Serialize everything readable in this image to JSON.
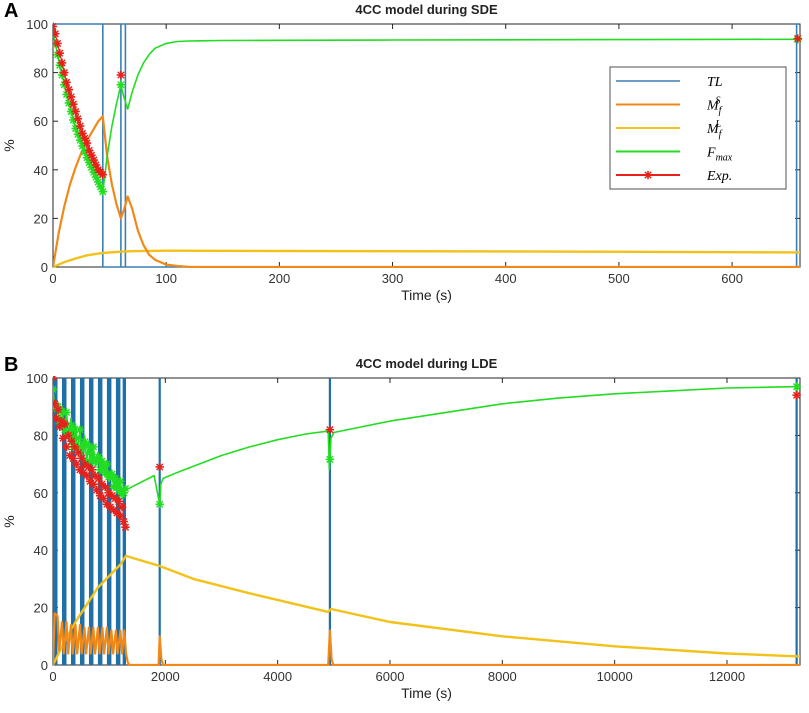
{
  "panel_a_label": "A",
  "panel_b_label": "B",
  "chart_data": [
    {
      "type": "line",
      "title": "4CC model during SDE",
      "xlabel": "Time (s)",
      "ylabel": "%",
      "xlim": [
        0,
        660
      ],
      "ylim": [
        0,
        100
      ],
      "xticks": [
        0,
        100,
        200,
        300,
        400,
        500,
        600
      ],
      "yticks": [
        0,
        20,
        40,
        60,
        80,
        100
      ],
      "grid": false,
      "legend_position": "right",
      "legend": [
        {
          "key": "TL",
          "label": "TL",
          "color": "#3a7fb5"
        },
        {
          "key": "Mfs",
          "label": "M",
          "sub": "f",
          "sup": "S",
          "color": "#f0891a"
        },
        {
          "key": "MfL",
          "label": "M",
          "sub": "f",
          "sup": "L",
          "color": "#f2c21a"
        },
        {
          "key": "Fmax",
          "label": "F",
          "sub": "max",
          "sup": "",
          "color": "#22dd22"
        },
        {
          "key": "Exp",
          "label": "Exp.",
          "color": "#e8201a"
        }
      ],
      "series": [
        {
          "name": "TL",
          "color": "#3a7fb5",
          "x": [
            0,
            44,
            44,
            60,
            60,
            62,
            62,
            64,
            64,
            65,
            65,
            657,
            657,
            659
          ],
          "y": [
            100,
            100,
            0,
            0,
            100,
            100,
            100,
            100,
            0,
            0,
            0,
            0,
            100,
            100
          ]
        },
        {
          "name": "Mfs",
          "color": "#f0891a",
          "x": [
            0,
            5,
            10,
            15,
            20,
            25,
            30,
            35,
            40,
            44,
            48,
            52,
            56,
            60,
            63,
            66,
            70,
            75,
            80,
            85,
            90,
            100,
            110,
            120,
            140,
            660
          ],
          "y": [
            0,
            14,
            25,
            34,
            41,
            47,
            52,
            56,
            60,
            62,
            45,
            34,
            26,
            20,
            24,
            29,
            24,
            15,
            9,
            5,
            3,
            1,
            0.4,
            0.1,
            0,
            0
          ]
        },
        {
          "name": "MfL",
          "color": "#f2c21a",
          "x": [
            0,
            10,
            20,
            30,
            44,
            60,
            70,
            100,
            200,
            400,
            660
          ],
          "y": [
            0,
            2,
            3.5,
            4.8,
            5.8,
            6.3,
            6.5,
            6.7,
            6.6,
            6.4,
            6
          ]
        },
        {
          "name": "Fmax",
          "color": "#22dd22",
          "x": [
            0,
            2,
            5,
            8,
            12,
            16,
            20,
            25,
            30,
            35,
            40,
            44,
            48,
            52,
            56,
            60,
            62,
            64,
            66,
            70,
            75,
            80,
            85,
            90,
            100,
            110,
            120,
            130,
            150,
            200,
            300,
            400,
            500,
            660
          ],
          "y": [
            96,
            92,
            85,
            79,
            71,
            64,
            57,
            51,
            45,
            40,
            35,
            31,
            46,
            58,
            67,
            75,
            71,
            68,
            65,
            72,
            79,
            84,
            87.5,
            90,
            92,
            92.8,
            93,
            93.1,
            93.2,
            93.3,
            93.4,
            93.5,
            93.6,
            93.7
          ]
        },
        {
          "name": "Exp",
          "color": "#e8201a",
          "x": [
            0,
            2,
            4,
            6,
            8,
            10,
            12,
            14,
            16,
            18,
            20,
            22,
            24,
            26,
            28,
            30,
            32,
            34,
            36,
            38,
            40,
            42,
            44,
            60,
            658
          ],
          "y": [
            99,
            96,
            92,
            88,
            84,
            80,
            76,
            73,
            70,
            67,
            64,
            61,
            58,
            55,
            53,
            51,
            48,
            46,
            44,
            42,
            40,
            39,
            38,
            79,
            94
          ]
        }
      ]
    },
    {
      "type": "line",
      "title": "4CC model during LDE",
      "xlabel": "Time (s)",
      "ylabel": "%",
      "xlim": [
        0,
        13300
      ],
      "ylim": [
        0,
        100
      ],
      "xticks": [
        0,
        2000,
        4000,
        6000,
        8000,
        10000,
        12000
      ],
      "yticks": [
        0,
        20,
        40,
        60,
        80,
        100
      ],
      "grid": false,
      "series": [
        {
          "name": "TL",
          "color": "#1f6fa8",
          "pulses": [
            [
              0,
              80
            ],
            [
              160,
              240
            ],
            [
              320,
              400
            ],
            [
              480,
              560
            ],
            [
              640,
              720
            ],
            [
              800,
              880
            ],
            [
              960,
              1040
            ],
            [
              1120,
              1200
            ],
            [
              1240,
              1300
            ]
          ],
          "spikes": [
            1900,
            4930,
            13240
          ]
        },
        {
          "name": "Mfs",
          "color": "#f0891a",
          "x": [
            0,
            30,
            80,
            110,
            160,
            190,
            240,
            270,
            320,
            350,
            400,
            430,
            480,
            510,
            560,
            590,
            640,
            670,
            720,
            750,
            800,
            830,
            880,
            910,
            960,
            990,
            1040,
            1070,
            1120,
            1150,
            1200,
            1230,
            1270,
            1300,
            1330,
            1360,
            1880,
            1900,
            1930,
            1960,
            4900,
            4930,
            4960,
            4990,
            13300
          ],
          "y": [
            0,
            18,
            17,
            5,
            15,
            4,
            15,
            4,
            14,
            4,
            14,
            4,
            14,
            4,
            13,
            4,
            13,
            4,
            13,
            4,
            13,
            4,
            13,
            4,
            13,
            4,
            12,
            4,
            12,
            4,
            12,
            4,
            12,
            4,
            1,
            0,
            0,
            10,
            2,
            0,
            0,
            12,
            2,
            0,
            0
          ]
        },
        {
          "name": "MfL",
          "color": "#f2c21a",
          "x": [
            0,
            200,
            400,
            600,
            800,
            1000,
            1200,
            1300,
            1900,
            2500,
            3500,
            4900,
            4950,
            6000,
            8000,
            10000,
            12000,
            13300
          ],
          "y": [
            0,
            8,
            15,
            21,
            27,
            31,
            35,
            38,
            34.5,
            30,
            25,
            18.5,
            19.5,
            15,
            10,
            6.5,
            4,
            3
          ]
        },
        {
          "name": "Fmax",
          "color": "#22dd22",
          "x": [
            0,
            40,
            80,
            120,
            160,
            200,
            240,
            280,
            320,
            360,
            400,
            440,
            480,
            520,
            560,
            600,
            640,
            680,
            720,
            760,
            800,
            840,
            880,
            920,
            960,
            1000,
            1040,
            1080,
            1120,
            1160,
            1200,
            1240,
            1280,
            1300,
            1500,
            1800,
            1900,
            1920,
            1960,
            2200,
            2600,
            3000,
            3500,
            4000,
            4500,
            4900,
            4920,
            4950,
            5000,
            6000,
            7000,
            8000,
            9000,
            10000,
            11000,
            12000,
            13300
          ],
          "y": [
            96,
            88,
            92,
            84,
            90,
            80,
            88,
            78,
            86,
            76,
            84,
            74,
            82,
            73,
            80,
            71,
            78,
            70,
            76,
            69,
            74,
            68,
            72,
            66,
            70,
            64,
            68,
            62,
            66,
            60,
            64,
            58,
            62,
            61,
            63,
            66,
            56,
            63,
            65,
            67,
            70,
            73,
            76,
            78.5,
            80.5,
            81.5,
            68,
            79,
            81,
            85,
            88,
            91,
            93,
            94.5,
            95.5,
            96.5,
            97
          ]
        },
        {
          "name": "Exp",
          "color": "#e8201a",
          "x": [
            0,
            30,
            60,
            90,
            120,
            150,
            180,
            210,
            240,
            270,
            300,
            330,
            360,
            390,
            420,
            450,
            480,
            510,
            540,
            570,
            600,
            630,
            660,
            690,
            720,
            750,
            780,
            810,
            840,
            870,
            900,
            930,
            960,
            990,
            1020,
            1050,
            1080,
            1110,
            1140,
            1170,
            1200,
            1230,
            1260,
            1290,
            1900,
            4930,
            13240
          ],
          "y": [
            100,
            91,
            86,
            89,
            83,
            85,
            79,
            84,
            76,
            80,
            73,
            78,
            72,
            76,
            70,
            74,
            68,
            72,
            67,
            70,
            66,
            69,
            64,
            68,
            63,
            66,
            61,
            65,
            59,
            63,
            58,
            62,
            56,
            60,
            55,
            59,
            54,
            58,
            53,
            57,
            52,
            55,
            50,
            48,
            69,
            82,
            94
          ]
        }
      ]
    }
  ]
}
